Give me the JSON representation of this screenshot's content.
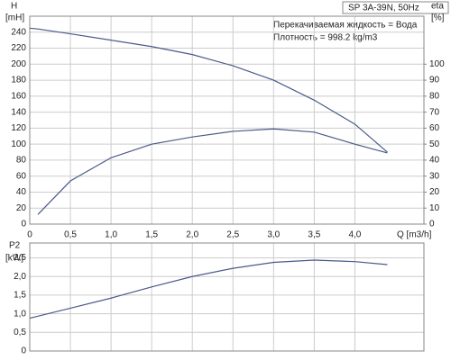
{
  "chart_data": [
    {
      "type": "line",
      "title": "SP 3A-39N, 50Hz",
      "annotations": [
        "Перекачиваемая жидкость = Вода",
        "Плотность = 998.2 kg/m3"
      ],
      "x_label": "Q [m3/h]",
      "y_label": "[mH]",
      "y2_label": "[%]",
      "x": [
        0,
        0.1,
        0.5,
        1.0,
        1.5,
        2.0,
        2.5,
        3.0,
        3.5,
        4.0,
        4.4
      ],
      "series": [
        {
          "name": "H",
          "color": "#4a5a8a",
          "values": [
            245,
            244,
            238,
            230,
            222,
            212,
            198,
            180,
            155,
            125,
            90
          ]
        },
        {
          "name": "eta",
          "color": "#4a5a8a",
          "axis": "y2",
          "values": [
            null,
            6,
            27,
            41.5,
            50,
            54.5,
            58,
            59.5,
            57.5,
            50,
            44.5
          ]
        }
      ],
      "xlim": [
        0,
        4.85
      ],
      "xticks": [
        0,
        {
          "value": 0.5,
          "label": "0,5"
        },
        {
          "value": 1.0,
          "label": "1,0"
        },
        {
          "value": 1.5,
          "label": "1,5"
        },
        {
          "value": 2.0,
          "label": "2,0"
        },
        {
          "value": 2.5,
          "label": "2,5"
        },
        {
          "value": 3.0,
          "label": "3,0"
        },
        {
          "value": 3.5,
          "label": "3,5"
        },
        {
          "value": 4.0,
          "label": "4,0"
        }
      ],
      "ylim": [
        0,
        260
      ],
      "yticks": [
        0,
        20,
        40,
        60,
        80,
        100,
        120,
        140,
        160,
        180,
        200,
        220,
        240
      ],
      "y2lim": [
        0,
        130
      ],
      "y2ticks": [
        0,
        10,
        20,
        30,
        40,
        50,
        60,
        70,
        80,
        90,
        100
      ],
      "grid": true
    },
    {
      "type": "line",
      "y_title": "P2",
      "y_label": "[kW]",
      "x": [
        0,
        0.5,
        1.0,
        1.5,
        2.0,
        2.5,
        3.0,
        3.5,
        4.0,
        4.4
      ],
      "series": [
        {
          "color": "#4a5a8a",
          "values": [
            0.88,
            1.15,
            1.42,
            1.72,
            2.0,
            2.22,
            2.38,
            2.44,
            2.4,
            2.32
          ]
        }
      ],
      "xlim": [
        0,
        4.85
      ],
      "ylim": [
        0,
        2.9
      ],
      "yticks": [
        0,
        {
          "value": 0.5,
          "label": "0,5"
        },
        {
          "value": 1.0,
          "label": "1,0"
        },
        {
          "value": 1.5,
          "label": "1,5"
        },
        {
          "value": 2.0,
          "label": "2,0"
        },
        {
          "value": 2.5,
          "label": "2,5"
        }
      ],
      "grid": true
    }
  ]
}
